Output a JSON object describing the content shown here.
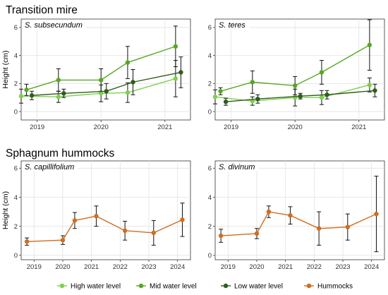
{
  "sections": {
    "transition": "Transition mire",
    "hummocks": "Sphagnum hummocks"
  },
  "legend": {
    "items": [
      {
        "label": "High water level",
        "color": "#7ed04b"
      },
      {
        "label": "Mid water level",
        "color": "#55a821"
      },
      {
        "label": "Low water level",
        "color": "#2e5e1a"
      },
      {
        "label": "Hummocks",
        "color": "#d06d1f"
      }
    ]
  },
  "chart_data": [
    {
      "type": "line",
      "title": "S. subsecundum",
      "ylabel": "Height (cm)",
      "xlabel": "",
      "x_ticks": [
        "2019",
        "2020",
        "2021"
      ],
      "y_ticks": [
        "0",
        "2",
        "4",
        "6"
      ],
      "ylim": [
        -0.6,
        6.6
      ],
      "xlim": [
        2018.75,
        2021.4
      ],
      "grid": true,
      "series": [
        {
          "name": "High water level",
          "color": "#7ed04b",
          "points": [
            {
              "x": "2018-10",
              "y": 1.1,
              "err": 0.5
            },
            {
              "x": "2019-05",
              "y": 1.05,
              "err": 0.4
            },
            {
              "x": "2020-01",
              "y": 1.3,
              "err": 0.6
            },
            {
              "x": "2020-06",
              "y": 1.35,
              "err": 0.7
            },
            {
              "x": "2021-03",
              "y": 2.35,
              "err": 1.3
            }
          ]
        },
        {
          "name": "Mid water level",
          "color": "#55a821",
          "points": [
            {
              "x": "2018-11",
              "y": 1.55,
              "err": 0.4
            },
            {
              "x": "2019-05",
              "y": 2.25,
              "err": 0.8
            },
            {
              "x": "2020-01",
              "y": 2.25,
              "err": 0.8
            },
            {
              "x": "2020-06",
              "y": 3.5,
              "err": 1.15
            },
            {
              "x": "2021-03",
              "y": 4.65,
              "err": 1.45
            }
          ]
        },
        {
          "name": "Low water level",
          "color": "#2e5e1a",
          "points": [
            {
              "x": "2018-12",
              "y": 1.15,
              "err": 0.3
            },
            {
              "x": "2019-06",
              "y": 1.3,
              "err": 0.3
            },
            {
              "x": "2020-02",
              "y": 1.45,
              "err": 0.55
            },
            {
              "x": "2020-07",
              "y": 2.1,
              "err": 0.9
            },
            {
              "x": "2021-04",
              "y": 2.8,
              "err": 1.1
            }
          ]
        }
      ]
    },
    {
      "type": "line",
      "title": "S. teres",
      "ylabel": "",
      "xlabel": "",
      "x_ticks": [
        "2019",
        "2020",
        "2021"
      ],
      "y_ticks": [
        "0",
        "2",
        "4",
        "6"
      ],
      "ylim": [
        -0.6,
        6.6
      ],
      "xlim": [
        2018.75,
        2021.4
      ],
      "grid": true,
      "series": [
        {
          "name": "High water level",
          "color": "#7ed04b",
          "points": [
            {
              "x": "2018-10",
              "y": 1.05,
              "err": 0.5
            },
            {
              "x": "2019-05",
              "y": 0.75,
              "err": 0.3
            },
            {
              "x": "2020-01",
              "y": 1.0,
              "err": 0.6
            },
            {
              "x": "2020-06",
              "y": 1.0,
              "err": 0.5
            },
            {
              "x": "2021-03",
              "y": 1.9,
              "err": 0.5
            }
          ]
        },
        {
          "name": "Mid water level",
          "color": "#55a821",
          "points": [
            {
              "x": "2018-11",
              "y": 1.45,
              "err": 0.25
            },
            {
              "x": "2019-05",
              "y": 2.1,
              "err": 0.8
            },
            {
              "x": "2020-01",
              "y": 1.85,
              "err": 0.65
            },
            {
              "x": "2020-06",
              "y": 2.8,
              "err": 0.85
            },
            {
              "x": "2021-03",
              "y": 4.75,
              "err": 1.8
            }
          ]
        },
        {
          "name": "Low water level",
          "color": "#2e5e1a",
          "points": [
            {
              "x": "2018-12",
              "y": 0.7,
              "err": 0.25
            },
            {
              "x": "2019-06",
              "y": 0.9,
              "err": 0.3
            },
            {
              "x": "2020-02",
              "y": 1.1,
              "err": 0.2
            },
            {
              "x": "2020-07",
              "y": 1.2,
              "err": 0.3
            },
            {
              "x": "2021-04",
              "y": 1.5,
              "err": 0.45
            }
          ]
        }
      ]
    },
    {
      "type": "line",
      "title": "S. capillifolium",
      "ylabel": "Height (cm)",
      "xlabel": "",
      "x_ticks": [
        "2019",
        "2020",
        "2021",
        "2022",
        "2023",
        "2024"
      ],
      "y_ticks": [
        "0",
        "2",
        "4",
        "6"
      ],
      "ylim": [
        -0.3,
        6.5
      ],
      "xlim": [
        2018.55,
        2024.45
      ],
      "grid": true,
      "series": [
        {
          "name": "Hummocks",
          "color": "#d06d1f",
          "points": [
            {
              "x": "2018-10",
              "y": 0.95,
              "err": 0.25
            },
            {
              "x": "2020-01",
              "y": 1.05,
              "err": 0.3
            },
            {
              "x": "2020-06",
              "y": 2.4,
              "err": 0.55
            },
            {
              "x": "2021-03",
              "y": 2.7,
              "err": 0.7
            },
            {
              "x": "2022-03",
              "y": 1.7,
              "err": 0.65
            },
            {
              "x": "2023-03",
              "y": 1.55,
              "err": 0.85
            },
            {
              "x": "2024-03",
              "y": 2.45,
              "err": 1.15
            }
          ]
        }
      ]
    },
    {
      "type": "line",
      "title": "S. divinum",
      "ylabel": "",
      "xlabel": "",
      "x_ticks": [
        "2019",
        "2020",
        "2021",
        "2022",
        "2023",
        "2024"
      ],
      "y_ticks": [
        "0",
        "2",
        "4",
        "6"
      ],
      "ylim": [
        -0.3,
        6.5
      ],
      "xlim": [
        2018.55,
        2024.45
      ],
      "grid": true,
      "series": [
        {
          "name": "Hummocks",
          "color": "#d06d1f",
          "points": [
            {
              "x": "2018-10",
              "y": 1.35,
              "err": 0.45
            },
            {
              "x": "2020-01",
              "y": 1.5,
              "err": 0.35
            },
            {
              "x": "2020-06",
              "y": 3.0,
              "err": 0.4
            },
            {
              "x": "2021-03",
              "y": 2.75,
              "err": 0.6
            },
            {
              "x": "2022-03",
              "y": 1.85,
              "err": 1.15
            },
            {
              "x": "2023-03",
              "y": 1.95,
              "err": 0.9
            },
            {
              "x": "2024-03",
              "y": 2.85,
              "err": 2.6
            }
          ]
        }
      ]
    }
  ]
}
